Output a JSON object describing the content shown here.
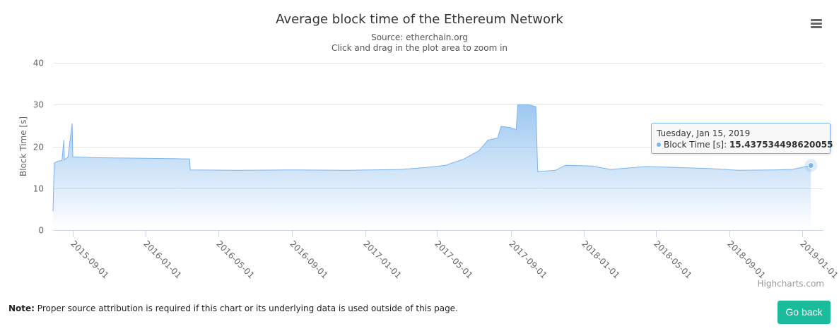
{
  "header": {
    "title": "Average block time of the Ethereum Network",
    "subtitle_source": "Source: etherchain.org",
    "subtitle_hint": "Click and drag in the plot area to zoom in",
    "menu_icon": "hamburger-icon"
  },
  "chart_data": {
    "type": "area",
    "title": "Average block time of the Ethereum Network",
    "ylabel": "Block Time [s]",
    "xlabel": "",
    "ylim": [
      0,
      40
    ],
    "yticks": [
      "0",
      "10",
      "20",
      "30",
      "40"
    ],
    "xticks": [
      "2015-09-01",
      "2016-01-01",
      "2016-05-01",
      "2016-09-01",
      "2017-01-01",
      "2017-05-01",
      "2017-09-01",
      "2018-01-01",
      "2018-05-01",
      "2018-09-01",
      "2019-01-01"
    ],
    "xlim": [
      "2015-07-30",
      "2019-02-05"
    ],
    "grid": true,
    "legend": "none",
    "color": "#7cb5ec",
    "series": [
      {
        "name": "Block Time [s]",
        "points": [
          [
            "2015-07-30",
            4.5
          ],
          [
            "2015-08-01",
            16.0
          ],
          [
            "2015-08-07",
            16.5
          ],
          [
            "2015-08-14",
            16.6
          ],
          [
            "2015-08-17",
            21.5
          ],
          [
            "2015-08-18",
            16.8
          ],
          [
            "2015-08-24",
            17.5
          ],
          [
            "2015-08-31",
            25.5
          ],
          [
            "2015-09-01",
            17.5
          ],
          [
            "2015-10-15",
            17.3
          ],
          [
            "2015-12-15",
            17.2
          ],
          [
            "2016-02-15",
            17.1
          ],
          [
            "2016-03-14",
            17.0
          ],
          [
            "2016-03-15",
            14.4
          ],
          [
            "2016-06-01",
            14.3
          ],
          [
            "2016-09-01",
            14.4
          ],
          [
            "2016-12-01",
            14.3
          ],
          [
            "2017-03-01",
            14.5
          ],
          [
            "2017-04-15",
            15.0
          ],
          [
            "2017-05-15",
            15.5
          ],
          [
            "2017-06-15",
            17.0
          ],
          [
            "2017-07-10",
            19.0
          ],
          [
            "2017-07-25",
            21.5
          ],
          [
            "2017-08-10",
            22.0
          ],
          [
            "2017-08-16",
            24.8
          ],
          [
            "2017-09-01",
            24.5
          ],
          [
            "2017-09-10",
            24.0
          ],
          [
            "2017-09-13",
            30.0
          ],
          [
            "2017-10-01",
            30.0
          ],
          [
            "2017-10-13",
            29.5
          ],
          [
            "2017-10-16",
            14.0
          ],
          [
            "2017-11-15",
            14.3
          ],
          [
            "2017-12-01",
            15.5
          ],
          [
            "2018-01-15",
            15.3
          ],
          [
            "2018-02-15",
            14.5
          ],
          [
            "2018-04-15",
            15.2
          ],
          [
            "2018-06-01",
            15.0
          ],
          [
            "2018-08-01",
            14.7
          ],
          [
            "2018-09-15",
            14.3
          ],
          [
            "2018-11-15",
            14.4
          ],
          [
            "2018-12-15",
            14.5
          ],
          [
            "2019-01-15",
            15.437534498620055
          ]
        ]
      }
    ]
  },
  "tooltip": {
    "date": "Tuesday, Jan 15, 2019",
    "series_label": "Block Time [s]:",
    "value": "15.437534498620055"
  },
  "credits": "Highcharts.com",
  "footer": {
    "note_label": "Note:",
    "note_text": "Proper source attribution is required if this chart or its underlying data is used outside of this page.",
    "go_back_label": "Go back"
  }
}
